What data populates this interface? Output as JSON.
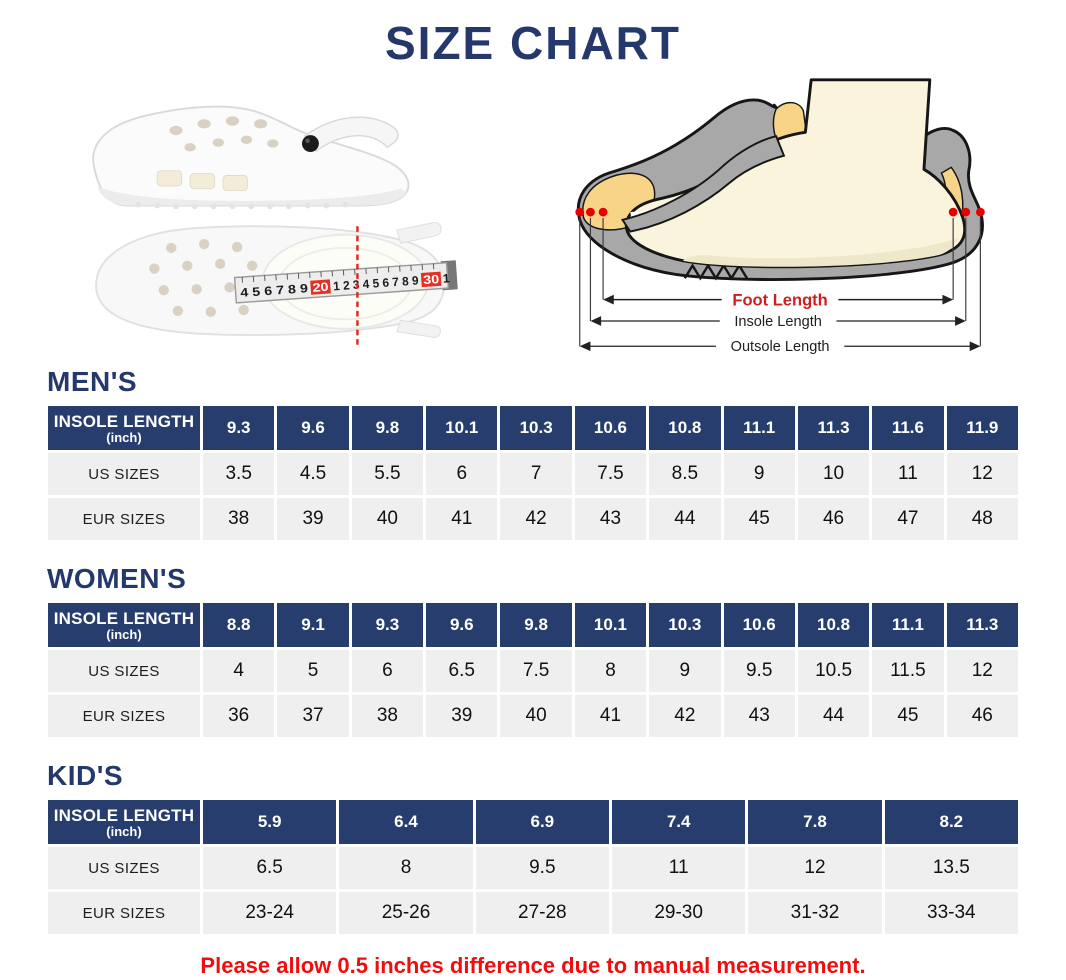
{
  "page": {
    "title": "SIZE CHART",
    "footnote": "Please allow 0.5 inches difference due to manual measurement."
  },
  "colors": {
    "navy": "#24386b",
    "table_header_navy": "#273d6e",
    "row_background": "#efefef",
    "footnote_red": "#f10d0d",
    "foot_length_red": "#cf1f1f",
    "diagram_gray": "#a8a8a8",
    "diagram_foot_cream": "#faf4dc",
    "diagram_insole_yellow": "#f7d488",
    "measure_dot_red": "#e80000"
  },
  "shoes": {
    "tape": {
      "segment_1": "4 5 6 7 8 9",
      "highlight_1": "20",
      "segment_2": "1 2 3 4 5 6 7 8 9",
      "highlight_2": "30",
      "segment_3": "1"
    }
  },
  "foot_diagram": {
    "foot_length_label": "Foot Length",
    "insole_length_label": "Insole Length",
    "outsole_length_label": "Outsole Length"
  },
  "chart_data": [
    {
      "type": "table",
      "title": "MEN'S",
      "row_header": {
        "line1": "INSOLE LENGTH",
        "line2": "(inch)"
      },
      "insole_lengths": [
        "9.3",
        "9.6",
        "9.8",
        "10.1",
        "10.3",
        "10.6",
        "10.8",
        "11.1",
        "11.3",
        "11.6",
        "11.9"
      ],
      "rows": [
        {
          "label": "US SIZES",
          "values": [
            "3.5",
            "4.5",
            "5.5",
            "6",
            "7",
            "7.5",
            "8.5",
            "9",
            "10",
            "11",
            "12"
          ]
        },
        {
          "label": "EUR SIZES",
          "values": [
            "38",
            "39",
            "40",
            "41",
            "42",
            "43",
            "44",
            "45",
            "46",
            "47",
            "48"
          ]
        }
      ]
    },
    {
      "type": "table",
      "title": "WOMEN'S",
      "row_header": {
        "line1": "INSOLE LENGTH",
        "line2": "(inch)"
      },
      "insole_lengths": [
        "8.8",
        "9.1",
        "9.3",
        "9.6",
        "9.8",
        "10.1",
        "10.3",
        "10.6",
        "10.8",
        "11.1",
        "11.3"
      ],
      "rows": [
        {
          "label": "US SIZES",
          "values": [
            "4",
            "5",
            "6",
            "6.5",
            "7.5",
            "8",
            "9",
            "9.5",
            "10.5",
            "11.5",
            "12"
          ]
        },
        {
          "label": "EUR SIZES",
          "values": [
            "36",
            "37",
            "38",
            "39",
            "40",
            "41",
            "42",
            "43",
            "44",
            "45",
            "46"
          ]
        }
      ]
    },
    {
      "type": "table",
      "title": "KID'S",
      "row_header": {
        "line1": "INSOLE LENGTH",
        "line2": "(inch)"
      },
      "insole_lengths": [
        "5.9",
        "6.4",
        "6.9",
        "7.4",
        "7.8",
        "8.2"
      ],
      "rows": [
        {
          "label": "US SIZES",
          "values": [
            "6.5",
            "8",
            "9.5",
            "11",
            "12",
            "13.5"
          ]
        },
        {
          "label": "EUR SIZES",
          "values": [
            "23-24",
            "25-26",
            "27-28",
            "29-30",
            "31-32",
            "33-34"
          ]
        }
      ]
    }
  ]
}
